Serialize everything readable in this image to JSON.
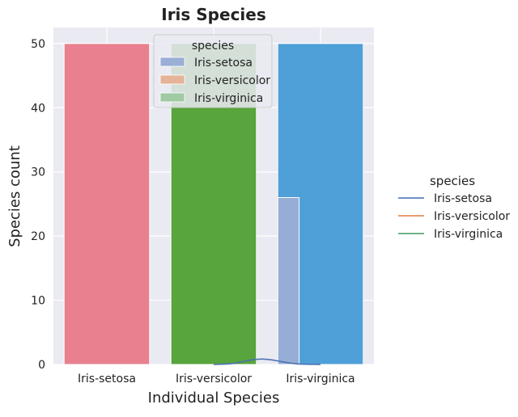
{
  "chart_data": {
    "type": "bar",
    "title": "Iris Species",
    "xlabel": "Individual Species",
    "ylabel": "Species count",
    "ylim": [
      0,
      52.5
    ],
    "yticks": [
      0,
      10,
      20,
      30,
      40,
      50
    ],
    "grid": true,
    "categories": [
      "Iris-setosa",
      "Iris-versicolor",
      "Iris-virginica"
    ],
    "values": [
      50,
      50,
      50
    ],
    "colors": [
      "#e8808f",
      "#58a43d",
      "#4f9fd8"
    ],
    "histogram": {
      "bin_edges": [
        1.6,
        1.8
      ],
      "counts": [
        26
      ],
      "color": "#9aaed6",
      "kde": [
        [
          1.0,
          0.0
        ],
        [
          1.1,
          0.05
        ],
        [
          1.15,
          0.1
        ],
        [
          1.2,
          0.2
        ],
        [
          1.25,
          0.35
        ],
        [
          1.3,
          0.55
        ],
        [
          1.35,
          0.7
        ],
        [
          1.4,
          0.8
        ],
        [
          1.45,
          0.85
        ],
        [
          1.5,
          0.8
        ],
        [
          1.55,
          0.7
        ],
        [
          1.6,
          0.55
        ],
        [
          1.65,
          0.4
        ],
        [
          1.7,
          0.25
        ],
        [
          1.75,
          0.15
        ],
        [
          1.8,
          0.07
        ],
        [
          1.9,
          0.02
        ],
        [
          2.0,
          0.0
        ]
      ],
      "kde_color": "#4c72b0"
    },
    "inner_legend": {
      "title": "species",
      "placement": "upper-center",
      "entries": [
        {
          "label": "Iris-setosa",
          "color": "#9aaed6"
        },
        {
          "label": "Iris-versicolor",
          "color": "#e5b397"
        },
        {
          "label": "Iris-virginica",
          "color": "#9fcaa4"
        }
      ]
    },
    "outer_legend": {
      "title": "species",
      "placement": "right",
      "entries": [
        {
          "label": "Iris-setosa",
          "color": "#3b6fb0"
        },
        {
          "label": "Iris-versicolor",
          "color": "#e07b39"
        },
        {
          "label": "Iris-virginica",
          "color": "#3f9a5f"
        }
      ]
    }
  }
}
